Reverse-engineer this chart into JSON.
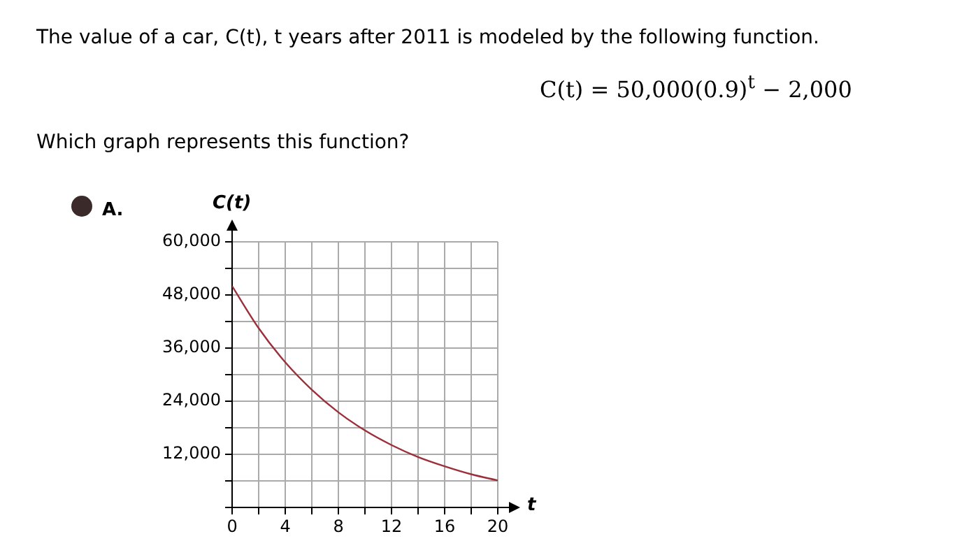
{
  "chart_data": {
    "type": "line",
    "title": "The value of a car, C(t), t years after 2011 is modeled by the following function.",
    "annotations": [
      "C(t) = 50,000(0.9)$^{t}$ − 2,000",
      "Which graph represents this function?",
      "A."
    ],
    "xlabel": "t",
    "ylabel": "C(t)",
    "x": [
      0,
      2,
      4,
      6,
      8,
      10,
      12,
      14,
      16,
      18,
      20
    ],
    "series": [
      {
        "color": "#9b2f3a",
        "values": [
          50000,
          40500,
          32800,
          26600,
          21500,
          17400,
          14100,
          11400,
          9300,
          7500,
          6100
        ]
      }
    ],
    "xlim": [
      0,
      20
    ],
    "ylim": [
      0,
      60000
    ],
    "xticks": [
      {
        "value": 0,
        "label": "0"
      },
      {
        "value": 2,
        "label": null
      },
      4,
      {
        "value": 6,
        "label": null
      },
      8,
      {
        "value": 10,
        "label": null
      },
      12,
      {
        "value": 14,
        "label": null
      },
      16,
      {
        "value": 18,
        "label": null
      },
      20
    ],
    "yticks": [
      {
        "value": 0,
        "label": null
      },
      {
        "value": 6000,
        "label": null
      },
      {
        "value": 12000,
        "label": "12,000"
      },
      {
        "value": 18000,
        "label": null
      },
      {
        "value": 24000,
        "label": "24,000"
      },
      {
        "value": 30000,
        "label": null
      },
      {
        "value": 36000,
        "label": "36,000"
      },
      {
        "value": 42000,
        "label": null
      },
      {
        "value": 48000,
        "label": "48,000"
      },
      {
        "value": 54000,
        "label": null
      },
      {
        "value": 60000,
        "label": "60,000"
      }
    ],
    "grid": true,
    "legend": false,
    "marker": "none",
    "line_style": "solid"
  }
}
